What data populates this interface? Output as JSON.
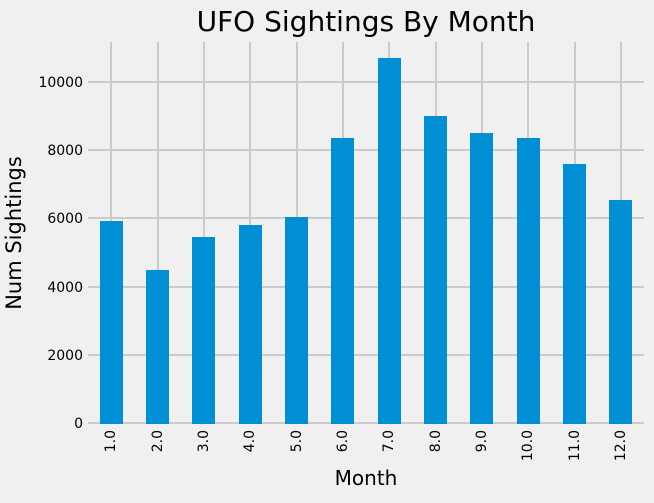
{
  "colors": {
    "background": "#f0f0f0",
    "bar": "#008fd5",
    "grid": "#cbcbcb",
    "text": "#000000"
  },
  "chart_data": {
    "type": "bar",
    "title": "UFO Sightings By Month",
    "xlabel": "Month",
    "ylabel": "Num Sightings",
    "categories": [
      "1.0",
      "2.0",
      "3.0",
      "4.0",
      "5.0",
      "6.0",
      "7.0",
      "8.0",
      "9.0",
      "10.0",
      "11.0",
      "12.0"
    ],
    "values": [
      5960,
      4530,
      5470,
      5830,
      6070,
      8390,
      10740,
      9040,
      8530,
      8400,
      7620,
      6570
    ],
    "yticks": [
      0,
      2000,
      4000,
      6000,
      8000,
      10000
    ],
    "ylim": [
      0,
      11200
    ],
    "grid": true,
    "legend": false,
    "bar_relative_width": 0.5
  }
}
